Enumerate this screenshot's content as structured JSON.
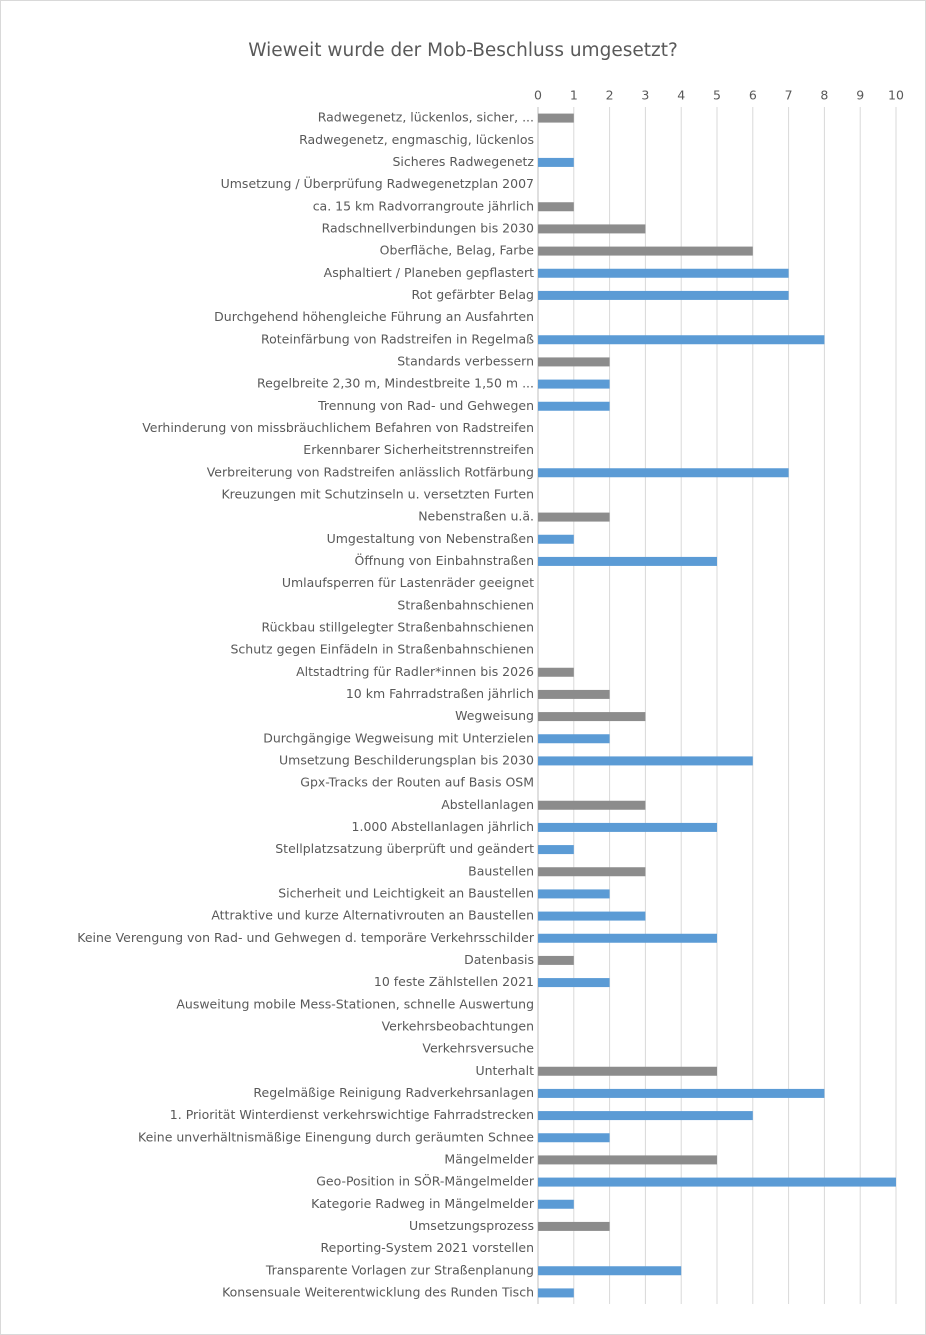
{
  "chart_data": {
    "type": "hbar",
    "title": "Wieweit wurde der Mob-Beschluss umgesetzt?",
    "categories": [
      "Radwegenetz, lückenlos, sicher, ...",
      "Radwegenetz, engmaschig, lückenlos",
      "Sicheres Radwegenetz",
      "Umsetzung / Überprüfung Radwegenetzplan 2007",
      "ca. 15 km Radvorrangroute jährlich",
      "Radschnellverbindungen bis 2030",
      "Oberfläche, Belag, Farbe",
      "Asphaltiert / Planeben gepflastert",
      "Rot gefärbter Belag",
      "Durchgehend höhengleiche Führung an Ausfahrten",
      "Roteinfärbung von Radstreifen in Regelmaß",
      "Standards verbessern",
      "Regelbreite 2,30 m, Mindestbreite 1,50 m ...",
      "Trennung von Rad- und Gehwegen",
      "Verhinderung von missbräuchlichem Befahren von Radstreifen",
      "Erkennbarer Sicherheitstrennstreifen",
      "Verbreiterung von Radstreifen anlässlich Rotfärbung",
      "Kreuzungen mit Schutzinseln u. versetzten Furten",
      "Nebenstraßen u.ä.",
      "Umgestaltung von Nebenstraßen",
      "Öffnung von Einbahnstraßen",
      "Umlaufsperren für Lastenräder geeignet",
      "Straßenbahnschienen",
      "Rückbau stillgelegter Straßenbahnschienen",
      "Schutz gegen Einfädeln in Straßenbahnschienen",
      "Altstadtring für Radler*innen bis 2026",
      "10 km Fahrradstraßen jährlich",
      "Wegweisung",
      "Durchgängige Wegweisung mit Unterzielen",
      "Umsetzung Beschilderungsplan bis 2030",
      "Gpx-Tracks der Routen auf Basis OSM",
      "Abstellanlagen",
      "1.000 Abstellanlagen jährlich",
      "Stellplatzsatzung überprüft und geändert",
      "Baustellen",
      "Sicherheit und Leichtigkeit an Baustellen",
      "Attraktive und kurze Alternativrouten an Baustellen",
      "Keine Verengung von Rad- und Gehwegen d. temporäre Verkehrsschilder",
      "Datenbasis",
      "10 feste Zählstellen 2021",
      "Ausweitung mobile Mess-Stationen, schnelle Auswertung",
      "Verkehrsbeobachtungen",
      "Verkehrsversuche",
      "Unterhalt",
      "Regelmäßige Reinigung Radverkehrsanlagen",
      "1. Priorität Winterdienst verkehrswichtige Fahrradstrecken",
      "Keine unverhältnismäßige Einengung durch geräumten Schnee",
      "Mängelmelder",
      "Geo-Position in SÖR-Mängelmelder",
      "Kategorie Radweg in Mängelmelder",
      "Umsetzungsprozess",
      "Reporting-System 2021 vorstellen",
      "Transparente Vorlagen zur Straßenplanung",
      "Konsensuale Weiterentwicklung des Runden Tisch"
    ],
    "values": [
      1,
      0,
      1,
      0,
      1,
      3,
      6,
      7,
      7,
      0,
      8,
      2,
      2,
      2,
      0,
      0,
      7,
      0,
      2,
      1,
      5,
      0,
      0,
      0,
      0,
      1,
      2,
      3,
      2,
      6,
      0,
      3,
      5,
      1,
      3,
      2,
      3,
      5,
      1,
      2,
      0,
      0,
      0,
      5,
      8,
      6,
      2,
      5,
      10,
      1,
      2,
      0,
      4,
      1
    ],
    "colors": [
      "#8c8c8c",
      null,
      "#5b9bd5",
      null,
      "#8c8c8c",
      "#8c8c8c",
      "#8c8c8c",
      "#5b9bd5",
      "#5b9bd5",
      null,
      "#5b9bd5",
      "#8c8c8c",
      "#5b9bd5",
      "#5b9bd5",
      null,
      null,
      "#5b9bd5",
      null,
      "#8c8c8c",
      "#5b9bd5",
      "#5b9bd5",
      null,
      null,
      null,
      null,
      "#8c8c8c",
      "#8c8c8c",
      "#8c8c8c",
      "#5b9bd5",
      "#5b9bd5",
      null,
      "#8c8c8c",
      "#5b9bd5",
      "#5b9bd5",
      "#8c8c8c",
      "#5b9bd5",
      "#5b9bd5",
      "#5b9bd5",
      "#8c8c8c",
      "#5b9bd5",
      null,
      null,
      null,
      "#8c8c8c",
      "#5b9bd5",
      "#5b9bd5",
      "#5b9bd5",
      "#8c8c8c",
      "#5b9bd5",
      "#5b9bd5",
      "#8c8c8c",
      null,
      "#5b9bd5",
      "#5b9bd5"
    ],
    "xlim": [
      0,
      10
    ],
    "xticks": [
      0,
      1,
      2,
      3,
      4,
      5,
      6,
      7,
      8,
      9,
      10
    ],
    "grid": true
  }
}
